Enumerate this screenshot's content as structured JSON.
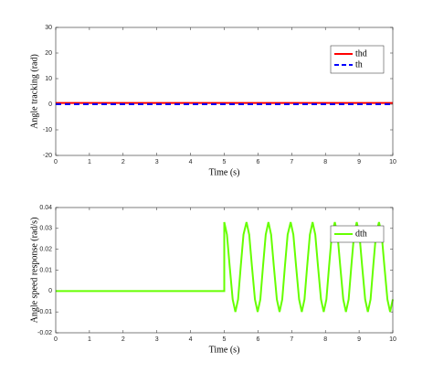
{
  "chart_data": [
    {
      "type": "line",
      "xlabel": "Time (s)",
      "ylabel": "Angle tracking (rad)",
      "x": [
        0,
        10
      ],
      "series": [
        {
          "name": "thd",
          "color": "#ff0000",
          "linestyle": "solid",
          "values": [
            0.5,
            0.5
          ]
        },
        {
          "name": "th",
          "color": "#0000ff",
          "linestyle": "dashed",
          "values": [
            0,
            0
          ]
        }
      ],
      "xlim": [
        0,
        10
      ],
      "xticks": [
        0,
        1,
        2,
        3,
        4,
        5,
        6,
        7,
        8,
        9,
        10
      ],
      "ylim": [
        -20,
        30
      ],
      "yticks": [
        -20,
        -10,
        0,
        10,
        20,
        30
      ],
      "grid": false,
      "legend": "upper right"
    },
    {
      "type": "line",
      "xlabel": "Time (s)",
      "ylabel": "Angle speed response (rad/s)",
      "x": [
        0,
        5,
        5,
        5.08,
        5.16,
        5.25,
        5.33,
        5.41,
        5.49,
        5.57,
        5.66,
        5.74,
        5.82,
        5.91,
        5.99,
        6.07,
        6.15,
        6.23,
        6.31,
        6.39,
        6.47,
        6.56,
        6.64,
        6.72,
        6.8,
        6.88,
        6.97,
        7.05,
        7.13,
        7.22,
        7.3,
        7.38,
        7.46,
        7.54,
        7.62,
        7.7,
        7.78,
        7.87,
        7.95,
        8.03,
        8.11,
        8.19,
        8.28,
        8.36,
        8.44,
        8.53,
        8.61,
        8.69,
        8.77,
        8.85,
        8.93,
        9.01,
        9.09,
        9.18,
        9.26,
        9.34,
        9.42,
        9.5,
        9.59,
        9.67,
        9.75,
        9.84,
        9.92,
        10
      ],
      "series": [
        {
          "name": "dth",
          "color": "#66ff00",
          "linestyle": "solid",
          "values": [
            0,
            0,
            0.033,
            0.027,
            0.012,
            -0.004,
            -0.01,
            -0.004,
            0.012,
            0.027,
            0.033,
            0.027,
            0.012,
            -0.004,
            -0.01,
            -0.004,
            0.012,
            0.027,
            0.033,
            0.027,
            0.012,
            -0.004,
            -0.01,
            -0.004,
            0.012,
            0.027,
            0.033,
            0.027,
            0.012,
            -0.004,
            -0.01,
            -0.004,
            0.012,
            0.027,
            0.033,
            0.027,
            0.012,
            -0.004,
            -0.01,
            -0.004,
            0.012,
            0.027,
            0.033,
            0.027,
            0.012,
            -0.004,
            -0.01,
            -0.004,
            0.012,
            0.027,
            0.033,
            0.027,
            0.012,
            -0.004,
            -0.01,
            -0.004,
            0.012,
            0.027,
            0.033,
            0.027,
            0.012,
            -0.004,
            -0.01,
            -0.004
          ]
        }
      ],
      "xlim": [
        0,
        10
      ],
      "xticks": [
        0,
        1,
        2,
        3,
        4,
        5,
        6,
        7,
        8,
        9,
        10
      ],
      "ylim": [
        -0.02,
        0.04
      ],
      "yticks": [
        -0.02,
        -0.01,
        0,
        0.01,
        0.02,
        0.03,
        0.04
      ],
      "grid": false,
      "legend": "upper right"
    }
  ]
}
